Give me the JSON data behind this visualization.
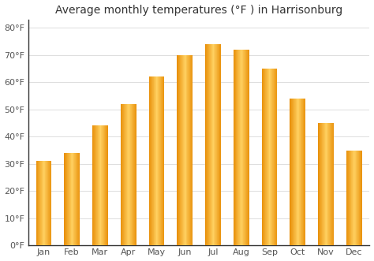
{
  "title": "Average monthly temperatures (°F ) in Harrisonburg",
  "months": [
    "Jan",
    "Feb",
    "Mar",
    "Apr",
    "May",
    "Jun",
    "Jul",
    "Aug",
    "Sep",
    "Oct",
    "Nov",
    "Dec"
  ],
  "values": [
    31,
    34,
    44,
    52,
    62,
    70,
    74,
    72,
    65,
    54,
    45,
    35
  ],
  "bar_color_main": "#FFA500",
  "bar_color_light": "#FFD070",
  "background_color": "#FFFFFF",
  "plot_bg_color": "#F5F5F5",
  "grid_color": "#DDDDDD",
  "ylim": [
    0,
    83
  ],
  "yticks": [
    0,
    10,
    20,
    30,
    40,
    50,
    60,
    70,
    80
  ],
  "ytick_labels": [
    "0°F",
    "10°F",
    "20°F",
    "30°F",
    "40°F",
    "50°F",
    "60°F",
    "70°F",
    "80°F"
  ],
  "title_fontsize": 10,
  "tick_fontsize": 8,
  "title_color": "#333333",
  "tick_color": "#555555",
  "bar_width": 0.55,
  "spine_color": "#333333"
}
